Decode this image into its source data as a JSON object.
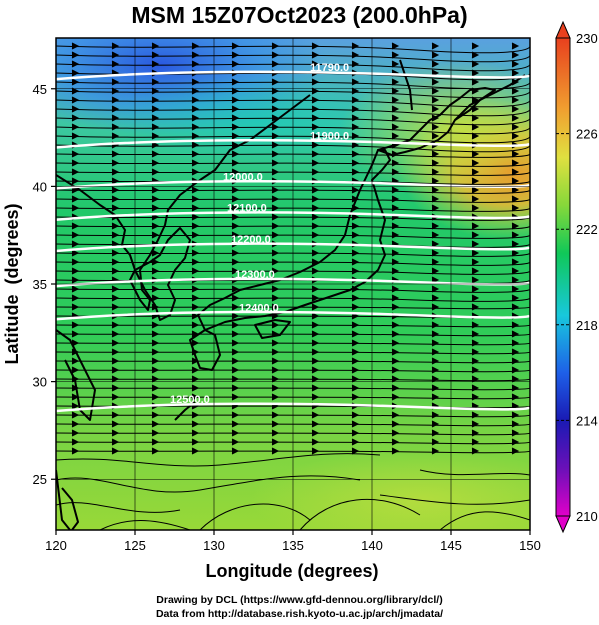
{
  "title": "MSM 15Z07Oct2023 (200.0hPa)",
  "chart_data": {
    "type": "heatmap",
    "title": "MSM 15Z07Oct2023 (200.0hPa)",
    "xlabel": "Longitude (degrees)",
    "ylabel": "Latitude  (degrees)",
    "xlim": [
      120,
      150
    ],
    "ylim": [
      22.4,
      47.6
    ],
    "x_ticks": [
      "120",
      "125",
      "130",
      "135",
      "140",
      "145",
      "150"
    ],
    "y_ticks": [
      "25",
      "30",
      "35",
      "40",
      "45"
    ],
    "colorbar": {
      "range": [
        210,
        230
      ],
      "ticks": [
        "230",
        "226",
        "222",
        "218",
        "214",
        "210"
      ],
      "colors": [
        "#e000c8",
        "#1a1ab4",
        "#1e60e8",
        "#18c8dc",
        "#10c858",
        "#86d83a",
        "#e0e040",
        "#f0a030",
        "#e8401e"
      ]
    },
    "contours": [
      {
        "label": "11790.0",
        "lat": 45.8
      },
      {
        "label": "11900.0",
        "lat": 42.3
      },
      {
        "label": "12000.0",
        "lat": 40.2
      },
      {
        "label": "12100.0",
        "lat": 38.6
      },
      {
        "label": "12200.0",
        "lat": 37.0
      },
      {
        "label": "12300.0",
        "lat": 35.2
      },
      {
        "label": "12400.0",
        "lat": 33.5
      },
      {
        "label": "12500.0",
        "lat": 28.8
      }
    ],
    "wind": "westerly streamlines, weaker and curved south of 27N"
  },
  "credits": {
    "line1": "Drawing by DCL (https://www.gfd-dennou.org/library/dcl/)",
    "line2": "Data from http://database.rish.kyoto-u.ac.jp/arch/jmadata/"
  }
}
